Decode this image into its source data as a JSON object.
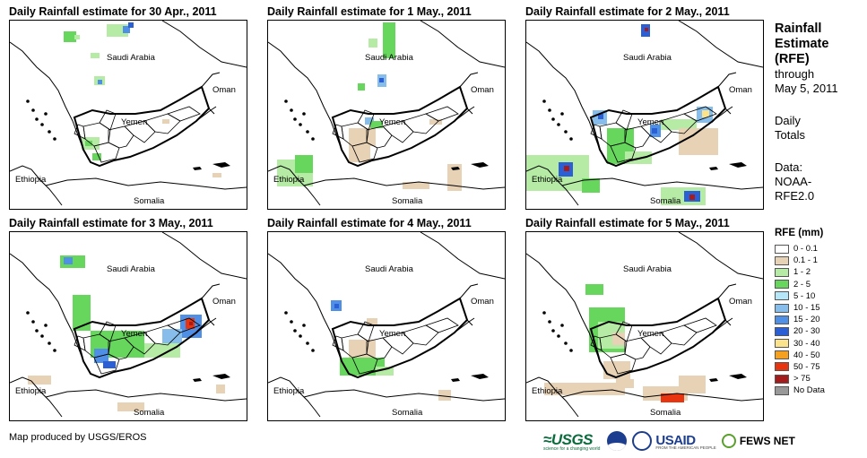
{
  "panels": [
    {
      "title": "Daily Rainfall estimate for 30 Apr., 2011"
    },
    {
      "title": "Daily Rainfall estimate for 1 May., 2011"
    },
    {
      "title": "Daily Rainfall estimate for 2 May., 2011"
    },
    {
      "title": "Daily Rainfall estimate for 3 May., 2011"
    },
    {
      "title": "Daily Rainfall estimate for 4 May., 2011"
    },
    {
      "title": "Daily Rainfall estimate for 5 May., 2011"
    }
  ],
  "map_labels": {
    "saudi": "Saudi Arabia",
    "oman": "Oman",
    "yemen": "Yemen",
    "ethiopia": "Ethiopia",
    "somalia": "Somalia"
  },
  "side": {
    "title_lines": [
      "Rainfall",
      "Estimate",
      "(RFE)"
    ],
    "through": "through",
    "date": "May 5, 2011",
    "daily_lines": [
      "Daily",
      "Totals"
    ],
    "data_lines": [
      "Data:",
      "NOAA-",
      "RFE2.0"
    ]
  },
  "legend": {
    "title": "RFE (mm)",
    "items": [
      {
        "label": "0 - 0.1",
        "color": "#ffffff"
      },
      {
        "label": "0.1 - 1",
        "color": "#e8d2b6"
      },
      {
        "label": "1 - 2",
        "color": "#b5eba4"
      },
      {
        "label": "2 - 5",
        "color": "#66d65c"
      },
      {
        "label": "5 - 10",
        "color": "#b6e6f7"
      },
      {
        "label": "10 - 15",
        "color": "#86bdeb"
      },
      {
        "label": "15 - 20",
        "color": "#4f8fe5"
      },
      {
        "label": "20 - 30",
        "color": "#2b5fd6"
      },
      {
        "label": "30 - 40",
        "color": "#fbe38c"
      },
      {
        "label": "40 - 50",
        "color": "#f5a01f"
      },
      {
        "label": "50 - 75",
        "color": "#e8350f"
      },
      {
        "label": "> 75",
        "color": "#a61b1b"
      },
      {
        "label": "No Data",
        "color": "#999999"
      }
    ]
  },
  "credit": "Map produced by USGS/EROS",
  "logos": {
    "usgs": "≈USGS",
    "usgs_tagline": "science for a changing world",
    "usaid": "USAID",
    "usaid_tagline": "FROM THE AMERICAN PEOPLE",
    "fews": "FEWS NET"
  }
}
